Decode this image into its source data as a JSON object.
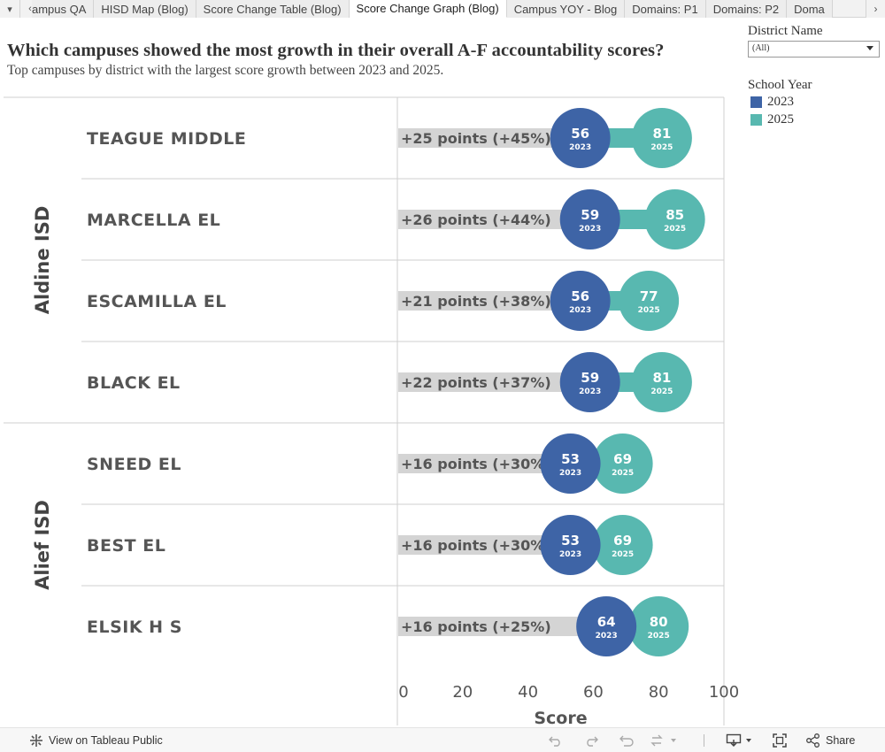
{
  "tabs": {
    "menu_glyph": "▾",
    "prev_glyph": "‹",
    "next_glyph": "›",
    "items": [
      {
        "label": "ampus QA"
      },
      {
        "label": "HISD Map (Blog)"
      },
      {
        "label": "Score Change Table (Blog)"
      },
      {
        "label": "Score Change Graph (Blog)"
      },
      {
        "label": "Campus YOY - Blog"
      },
      {
        "label": "Domains: P1"
      },
      {
        "label": "Domains: P2"
      },
      {
        "label": "Doma"
      }
    ],
    "active_index": 3
  },
  "filter": {
    "title": "District Name",
    "selected": "(All)"
  },
  "legend": {
    "title": "School Year",
    "items": [
      {
        "label": "2023",
        "color": "#3e64a6"
      },
      {
        "label": "2025",
        "color": "#58b8b0"
      }
    ]
  },
  "colors": {
    "y2023": "#3e64a6",
    "y2025": "#58b8b0",
    "change_bar": "#d4d4d4"
  },
  "chart_data": {
    "type": "dot",
    "title": "Which campuses showed the most growth in their overall A-F accountability scores?",
    "subtitle": "Top campuses by district with the largest score growth between 2023 and 2025.",
    "xlabel": "Score",
    "xlim": [
      0,
      100
    ],
    "xticks": [
      0,
      20,
      40,
      60,
      80,
      100
    ],
    "series": [
      {
        "name": "2023",
        "color": "#3e64a6"
      },
      {
        "name": "2025",
        "color": "#58b8b0"
      }
    ],
    "groups": [
      {
        "district": "Aldine ISD",
        "rows": [
          {
            "campus": "TEAGUE MIDDLE",
            "y2023": 56,
            "y2025": 81,
            "change_label": "+25 points (+45%)"
          },
          {
            "campus": "MARCELLA EL",
            "y2023": 59,
            "y2025": 85,
            "change_label": "+26 points (+44%)"
          },
          {
            "campus": "ESCAMILLA EL",
            "y2023": 56,
            "y2025": 77,
            "change_label": "+21 points (+38%)"
          },
          {
            "campus": "BLACK EL",
            "y2023": 59,
            "y2025": 81,
            "change_label": "+22 points (+37%)"
          }
        ]
      },
      {
        "district": "Alief ISD",
        "rows": [
          {
            "campus": "SNEED EL",
            "y2023": 53,
            "y2025": 69,
            "change_label": "+16 points (+30%)"
          },
          {
            "campus": "BEST EL",
            "y2023": 53,
            "y2025": 69,
            "change_label": "+16 points (+30%)"
          },
          {
            "campus": "ELSIK H S",
            "y2023": 64,
            "y2025": 80,
            "change_label": "+16 points (+25%)"
          }
        ]
      }
    ]
  },
  "footer": {
    "view_label": "View on Tableau Public",
    "share_label": "Share"
  }
}
